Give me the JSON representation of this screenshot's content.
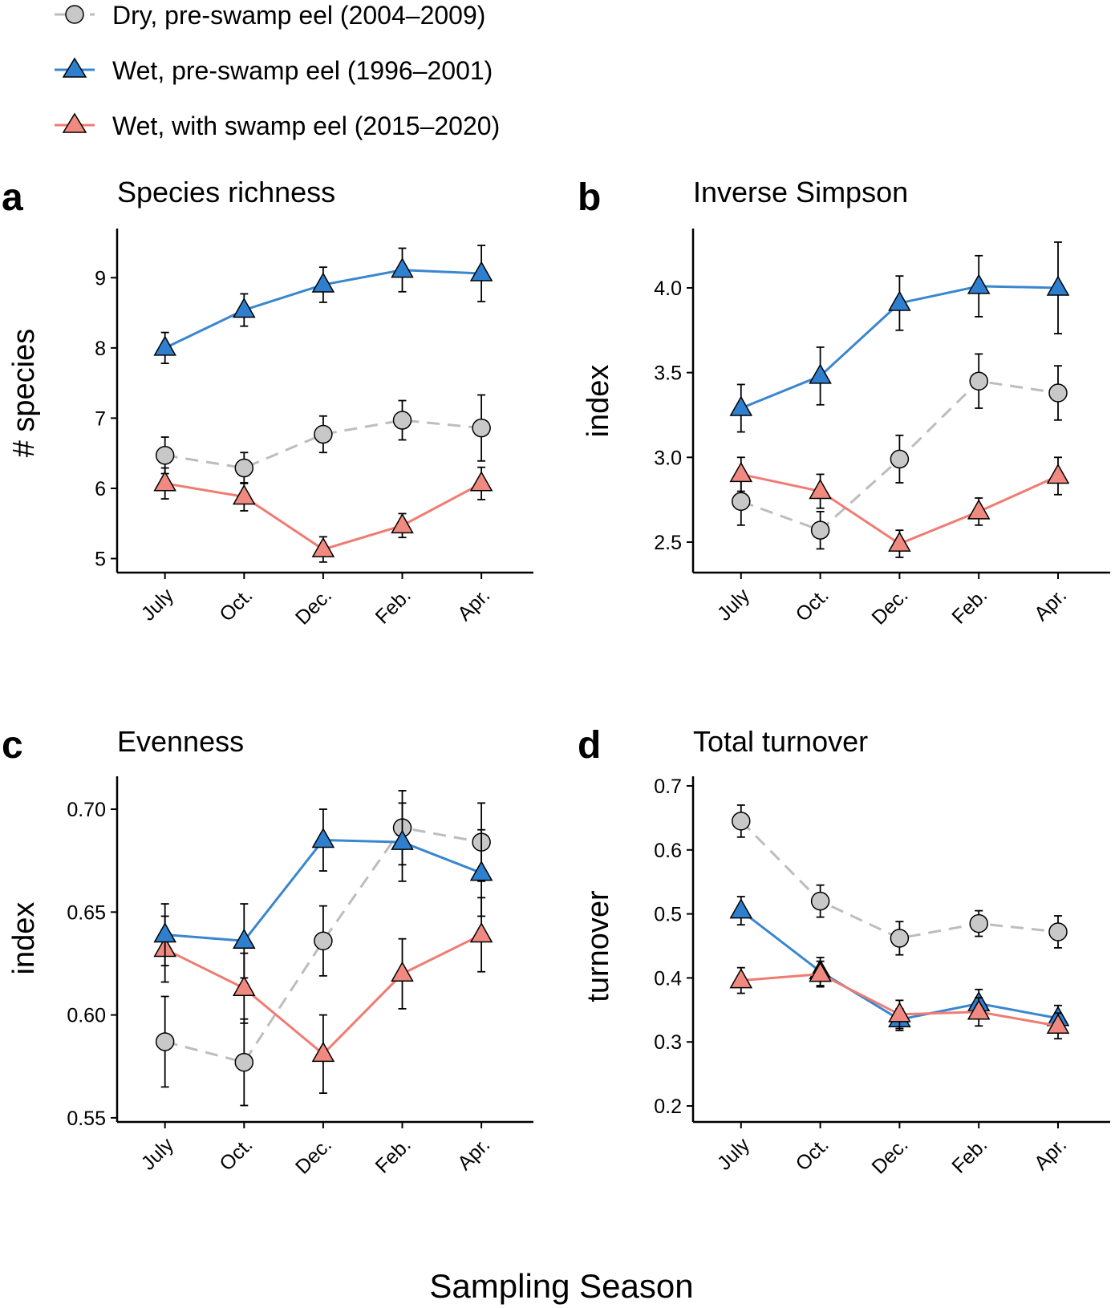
{
  "legend": [
    {
      "key": "dry",
      "label": "Dry, pre-swamp eel (2004–2009)",
      "color": "#bdbdbd",
      "fill": "#c8c8c8",
      "marker": "circle",
      "dash": true
    },
    {
      "key": "wetpre",
      "label": "Wet, pre-swamp eel (1996–2001)",
      "color": "#3a86cf",
      "fill": "#2f7fcf",
      "marker": "triangle",
      "dash": false
    },
    {
      "key": "wetwith",
      "label": "Wet, with swamp eel (2015–2020)",
      "color": "#f07b72",
      "fill": "#f08a80",
      "marker": "triangle",
      "dash": false
    }
  ],
  "x_axis_label": "Sampling Season",
  "chart_data": [
    {
      "type": "line",
      "letter": "a",
      "title": "Species richness",
      "ylabel": "# species",
      "categories": [
        "July",
        "Oct.",
        "Dec.",
        "Feb.",
        "Apr."
      ],
      "ylim": [
        4.8,
        9.7
      ],
      "yticks": [
        5,
        6,
        7,
        8,
        9
      ],
      "yticklabels": [
        "5",
        "6",
        "7",
        "8",
        "9"
      ],
      "series": [
        {
          "key": "dry",
          "name": "Dry, pre-swamp eel (2004–2009)",
          "values": [
            6.47,
            6.29,
            6.77,
            6.97,
            6.86
          ],
          "err": [
            0.26,
            0.22,
            0.26,
            0.28,
            0.47
          ]
        },
        {
          "key": "wetwith",
          "name": "Wet, with swamp eel (2015–2020)",
          "values": [
            6.07,
            5.88,
            5.13,
            5.47,
            6.07
          ],
          "err": [
            0.22,
            0.2,
            0.18,
            0.17,
            0.23
          ]
        },
        {
          "key": "wetpre",
          "name": "Wet, pre-swamp eel (1996–2001)",
          "values": [
            8.0,
            8.54,
            8.9,
            9.11,
            9.06
          ],
          "err": [
            0.22,
            0.23,
            0.25,
            0.31,
            0.4
          ]
        }
      ]
    },
    {
      "type": "line",
      "letter": "b",
      "title": "Inverse Simpson",
      "ylabel": "index",
      "categories": [
        "July",
        "Oct.",
        "Dec.",
        "Feb.",
        "Apr."
      ],
      "ylim": [
        2.32,
        4.35
      ],
      "yticks": [
        2.5,
        3.0,
        3.5,
        4.0
      ],
      "yticklabels": [
        "2.5",
        "3.0",
        "3.5",
        "4.0"
      ],
      "series": [
        {
          "key": "dry",
          "name": "Dry, pre-swamp eel (2004–2009)",
          "values": [
            2.74,
            2.57,
            2.99,
            3.45,
            3.38
          ],
          "err": [
            0.14,
            0.11,
            0.14,
            0.16,
            0.16
          ]
        },
        {
          "key": "wetwith",
          "name": "Wet, with swamp eel (2015–2020)",
          "values": [
            2.9,
            2.8,
            2.49,
            2.68,
            2.89
          ],
          "err": [
            0.1,
            0.1,
            0.08,
            0.08,
            0.11
          ]
        },
        {
          "key": "wetpre",
          "name": "Wet, pre-swamp eel (1996–2001)",
          "values": [
            3.29,
            3.48,
            3.91,
            4.01,
            4.0
          ],
          "err": [
            0.14,
            0.17,
            0.16,
            0.18,
            0.27
          ]
        }
      ]
    },
    {
      "type": "line",
      "letter": "c",
      "title": "Evenness",
      "ylabel": "index",
      "categories": [
        "July",
        "Oct.",
        "Dec.",
        "Feb.",
        "Apr."
      ],
      "ylim": [
        0.548,
        0.716
      ],
      "yticks": [
        0.55,
        0.6,
        0.65,
        0.7
      ],
      "yticklabels": [
        "0.55",
        "0.60",
        "0.65",
        "0.70"
      ],
      "series": [
        {
          "key": "dry",
          "name": "Dry, pre-swamp eel (2004–2009)",
          "values": [
            0.587,
            0.577,
            0.636,
            0.691,
            0.684
          ],
          "err": [
            0.022,
            0.021,
            0.017,
            0.018,
            0.019
          ]
        },
        {
          "key": "wetwith",
          "name": "Wet, with swamp eel (2015–2020)",
          "values": [
            0.632,
            0.613,
            0.581,
            0.62,
            0.639
          ],
          "err": [
            0.016,
            0.017,
            0.019,
            0.017,
            0.018
          ]
        },
        {
          "key": "wetpre",
          "name": "Wet, pre-swamp eel (1996–2001)",
          "values": [
            0.639,
            0.636,
            0.685,
            0.684,
            0.669
          ],
          "err": [
            0.015,
            0.018,
            0.015,
            0.019,
            0.021
          ]
        }
      ]
    },
    {
      "type": "line",
      "letter": "d",
      "title": "Total turnover",
      "ylabel": "turnover",
      "categories": [
        "July",
        "Oct.",
        "Dec.",
        "Feb.",
        "Apr."
      ],
      "ylim": [
        0.175,
        0.715
      ],
      "yticks": [
        0.2,
        0.3,
        0.4,
        0.5,
        0.6,
        0.7
      ],
      "yticklabels": [
        "0.2",
        "0.3",
        "0.4",
        "0.5",
        "0.6",
        "0.7"
      ],
      "series": [
        {
          "key": "dry",
          "name": "Dry, pre-swamp eel (2004–2009)",
          "values": [
            0.645,
            0.52,
            0.462,
            0.485,
            0.472
          ],
          "err": [
            0.025,
            0.025,
            0.026,
            0.02,
            0.025
          ]
        },
        {
          "key": "wetpre",
          "name": "Wet, pre-swamp eel (1996–2001)",
          "values": [
            0.505,
            0.41,
            0.335,
            0.36,
            0.337
          ],
          "err": [
            0.022,
            0.022,
            0.017,
            0.022,
            0.02
          ]
        },
        {
          "key": "wetwith",
          "name": "Wet, with swamp eel (2015–2020)",
          "values": [
            0.396,
            0.406,
            0.343,
            0.347,
            0.325
          ],
          "err": [
            0.02,
            0.02,
            0.022,
            0.022,
            0.02
          ]
        }
      ]
    }
  ]
}
